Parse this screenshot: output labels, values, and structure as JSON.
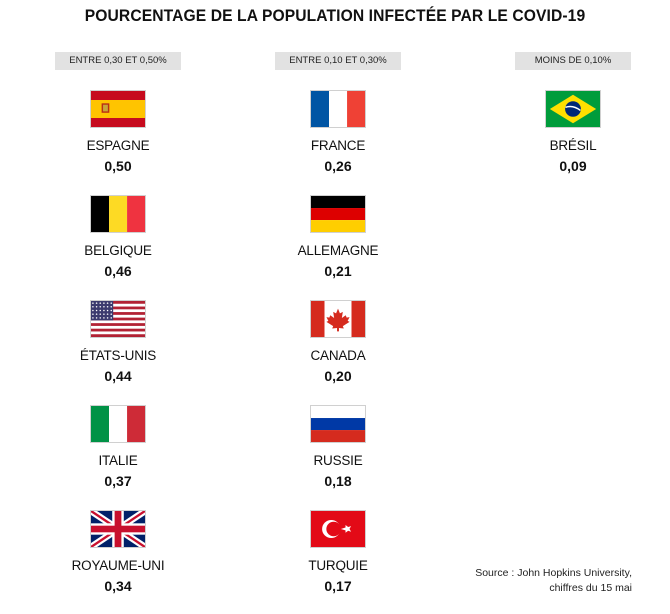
{
  "title": "POURCENTAGE DE LA POPULATION INFECTÉE PAR LE COVID-19",
  "source_line1": "Source : John Hopkins University,",
  "source_line2": "chiffres du 15 mai",
  "chart_data": {
    "type": "table",
    "title": "POURCENTAGE DE LA POPULATION INFECTÉE PAR LE COVID-19",
    "groups": [
      {
        "label": "ENTRE 0,30 ET 0,50%",
        "entries": [
          {
            "country": "ESPAGNE",
            "value": "0,50",
            "flag": "spain-flag-icon"
          },
          {
            "country": "BELGIQUE",
            "value": "0,46",
            "flag": "belgium-flag-icon"
          },
          {
            "country": "ÉTATS-UNIS",
            "value": "0,44",
            "flag": "usa-flag-icon"
          },
          {
            "country": "ITALIE",
            "value": "0,37",
            "flag": "italy-flag-icon"
          },
          {
            "country": "ROYAUME-UNI",
            "value": "0,34",
            "flag": "uk-flag-icon"
          }
        ]
      },
      {
        "label": "ENTRE 0,10 ET 0,30%",
        "entries": [
          {
            "country": "FRANCE",
            "value": "0,26",
            "flag": "france-flag-icon"
          },
          {
            "country": "ALLEMAGNE",
            "value": "0,21",
            "flag": "germany-flag-icon"
          },
          {
            "country": "CANADA",
            "value": "0,20",
            "flag": "canada-flag-icon"
          },
          {
            "country": "RUSSIE",
            "value": "0,18",
            "flag": "russia-flag-icon"
          },
          {
            "country": "TURQUIE",
            "value": "0,17",
            "flag": "turkey-flag-icon"
          }
        ]
      },
      {
        "label": "MOINS DE 0,10%",
        "entries": [
          {
            "country": "BRÉSIL",
            "value": "0,09",
            "flag": "brazil-flag-icon"
          }
        ]
      }
    ]
  },
  "colors": {
    "header_bg": "#e2e2e2",
    "text": "#111111"
  }
}
